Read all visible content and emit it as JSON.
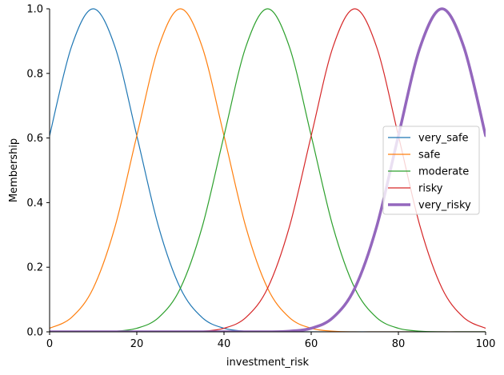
{
  "chart_data": {
    "type": "line",
    "title": "",
    "xlabel": "investment_risk",
    "ylabel": "Membership",
    "xlim": [
      0,
      100
    ],
    "ylim": [
      0,
      1.0
    ],
    "x_ticks": [
      0,
      20,
      40,
      60,
      80,
      100
    ],
    "x_tick_labels": [
      "0",
      "20",
      "40",
      "60",
      "80",
      "100"
    ],
    "y_ticks": [
      0.0,
      0.2,
      0.4,
      0.6,
      0.8,
      1.0
    ],
    "y_tick_labels": [
      "0.0",
      "0.2",
      "0.4",
      "0.6",
      "0.8",
      "1.0"
    ],
    "grid": false,
    "legend_position": "center-right",
    "x": [
      0,
      5,
      10,
      15,
      20,
      25,
      30,
      35,
      40,
      45,
      50,
      55,
      60,
      65,
      70,
      75,
      80,
      85,
      90,
      95,
      100
    ],
    "series": [
      {
        "name": "very_safe",
        "color": "#1f77b4",
        "emphasized": false,
        "values": [
          0.607,
          0.882,
          1.0,
          0.882,
          0.607,
          0.325,
          0.135,
          0.044,
          0.011,
          0.002,
          0.0,
          0.0,
          0.0,
          0.0,
          0.0,
          0.0,
          0.0,
          0.0,
          0.0,
          0.0,
          0.0
        ]
      },
      {
        "name": "safe",
        "color": "#ff7f0e",
        "emphasized": false,
        "values": [
          0.011,
          0.044,
          0.135,
          0.325,
          0.607,
          0.882,
          1.0,
          0.882,
          0.607,
          0.325,
          0.135,
          0.044,
          0.011,
          0.002,
          0.0,
          0.0,
          0.0,
          0.0,
          0.0,
          0.0,
          0.0
        ]
      },
      {
        "name": "moderate",
        "color": "#2ca02c",
        "emphasized": false,
        "values": [
          0.0,
          0.0,
          0.0,
          0.002,
          0.011,
          0.044,
          0.135,
          0.325,
          0.607,
          0.882,
          1.0,
          0.882,
          0.607,
          0.325,
          0.135,
          0.044,
          0.011,
          0.002,
          0.0,
          0.0,
          0.0
        ]
      },
      {
        "name": "risky",
        "color": "#d62728",
        "emphasized": false,
        "values": [
          0.0,
          0.0,
          0.0,
          0.0,
          0.0,
          0.0,
          0.0,
          0.002,
          0.011,
          0.044,
          0.135,
          0.325,
          0.607,
          0.882,
          1.0,
          0.882,
          0.607,
          0.325,
          0.135,
          0.044,
          0.011
        ]
      },
      {
        "name": "very_risky",
        "color": "#9467bd",
        "emphasized": true,
        "values": [
          0.0,
          0.0,
          0.0,
          0.0,
          0.0,
          0.0,
          0.0,
          0.0,
          0.0,
          0.0,
          0.0,
          0.002,
          0.011,
          0.044,
          0.135,
          0.325,
          0.607,
          0.882,
          1.0,
          0.882,
          0.607
        ]
      }
    ]
  }
}
